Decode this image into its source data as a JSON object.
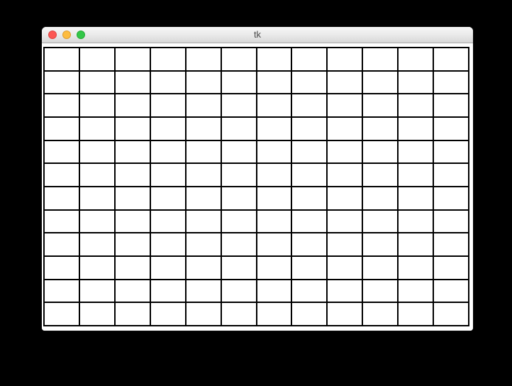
{
  "window": {
    "title": "tk"
  },
  "titlebar": {
    "close_color": "#fc5753",
    "close_border": "#df4744",
    "minimize_color": "#fdbc40",
    "minimize_border": "#de9f34",
    "zoom_color": "#33c748",
    "zoom_border": "#27aa35"
  },
  "grid": {
    "rows": 12,
    "cols": 12,
    "cell_fill": "#ffffff",
    "line_color": "#000000"
  },
  "colors": {
    "page_background": "#000000",
    "window_background": "#ffffff"
  }
}
